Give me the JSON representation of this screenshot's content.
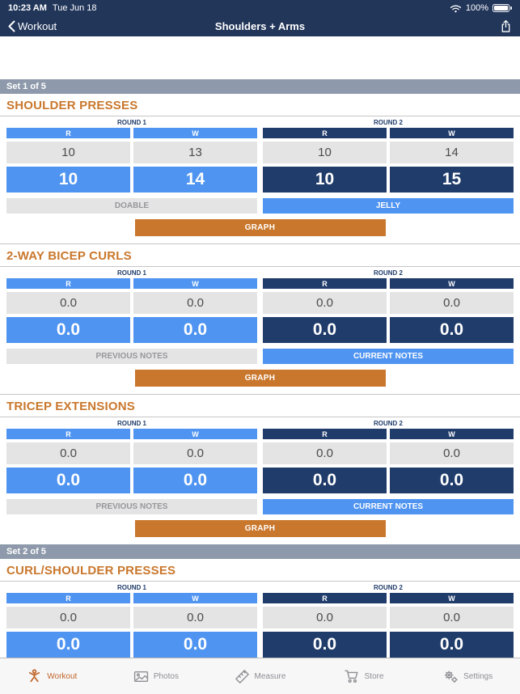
{
  "status_bar": {
    "time": "10:23 AM",
    "date": "Tue Jun 18",
    "battery_percent": "100%",
    "icons": [
      "wifi-icon",
      "battery-icon"
    ]
  },
  "nav_bar": {
    "back_label": "Workout",
    "title": "Shoulders + Arms",
    "icons": [
      "back-chevron-icon",
      "share-icon"
    ]
  },
  "colors": {
    "top_bar_navy": "#22365A",
    "round1_blue": "#4F94F1",
    "round2_navy": "#203C6B",
    "accent_orange": "#C9772C",
    "set_header_gray": "#8E9AAB",
    "previous_cell_gray": "#E4E4E5"
  },
  "sets": [
    {
      "label": "Set 1 of 5",
      "exercises": [
        {
          "title": "SHOULDER PRESSES",
          "rounds": [
            {
              "label": "ROUND 1",
              "theme": "blue",
              "col_headers": [
                "R",
                "W"
              ],
              "previous": [
                "10",
                "13"
              ],
              "current": [
                "10",
                "14"
              ]
            },
            {
              "label": "ROUND 2",
              "theme": "navy",
              "col_headers": [
                "R",
                "W"
              ],
              "previous": [
                "10",
                "14"
              ],
              "current": [
                "10",
                "15"
              ]
            }
          ],
          "left_button": "DOABLE",
          "right_button": "JELLY",
          "graph_button": "GRAPH"
        },
        {
          "title": "2-WAY BICEP CURLS",
          "rounds": [
            {
              "label": "ROUND 1",
              "theme": "blue",
              "col_headers": [
                "R",
                "W"
              ],
              "previous": [
                "0.0",
                "0.0"
              ],
              "current": [
                "0.0",
                "0.0"
              ]
            },
            {
              "label": "ROUND 2",
              "theme": "navy",
              "col_headers": [
                "R",
                "W"
              ],
              "previous": [
                "0.0",
                "0.0"
              ],
              "current": [
                "0.0",
                "0.0"
              ]
            }
          ],
          "left_button": "PREVIOUS NOTES",
          "right_button": "CURRENT NOTES",
          "graph_button": "GRAPH"
        },
        {
          "title": "TRICEP EXTENSIONS",
          "rounds": [
            {
              "label": "ROUND 1",
              "theme": "blue",
              "col_headers": [
                "R",
                "W"
              ],
              "previous": [
                "0.0",
                "0.0"
              ],
              "current": [
                "0.0",
                "0.0"
              ]
            },
            {
              "label": "ROUND 2",
              "theme": "navy",
              "col_headers": [
                "R",
                "W"
              ],
              "previous": [
                "0.0",
                "0.0"
              ],
              "current": [
                "0.0",
                "0.0"
              ]
            }
          ],
          "left_button": "PREVIOUS NOTES",
          "right_button": "CURRENT NOTES",
          "graph_button": "GRAPH"
        }
      ]
    },
    {
      "label": "Set 2 of 5",
      "exercises": [
        {
          "title": "CURL/SHOULDER PRESSES",
          "rounds": [
            {
              "label": "ROUND 1",
              "theme": "blue",
              "col_headers": [
                "R",
                "W"
              ],
              "previous": [
                "0.0",
                "0.0"
              ],
              "current": [
                "0.0",
                "0.0"
              ]
            },
            {
              "label": "ROUND 2",
              "theme": "navy",
              "col_headers": [
                "R",
                "W"
              ],
              "previous": [
                "0.0",
                "0.0"
              ],
              "current": [
                "0.0",
                "0.0"
              ]
            }
          ]
        }
      ]
    }
  ],
  "tab_bar": {
    "items": [
      {
        "label": "Workout",
        "icon": "gymnast-icon",
        "active": true
      },
      {
        "label": "Photos",
        "icon": "photos-icon",
        "active": false
      },
      {
        "label": "Measure",
        "icon": "ruler-icon",
        "active": false
      },
      {
        "label": "Store",
        "icon": "cart-icon",
        "active": false
      },
      {
        "label": "Settings",
        "icon": "gears-icon",
        "active": false
      }
    ]
  }
}
